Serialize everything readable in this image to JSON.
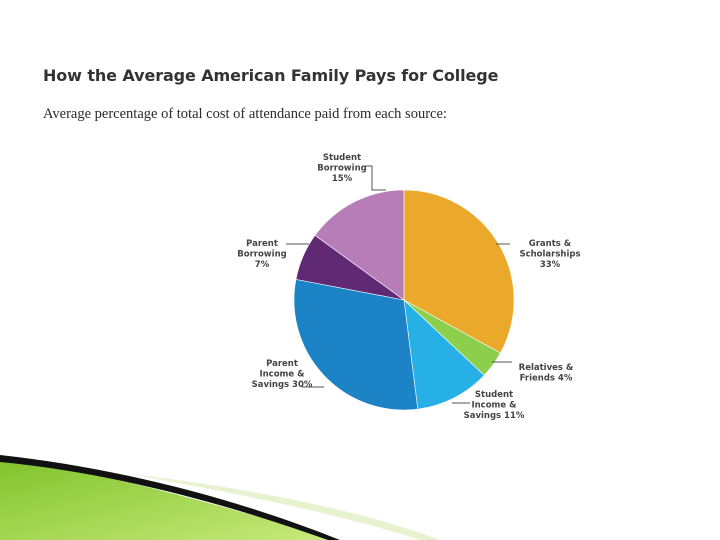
{
  "slide": {
    "title": "How the Average American Family Pays for College",
    "subtitle": "Average percentage of total cost of attendance paid from each source:"
  },
  "chart_data": {
    "type": "pie",
    "title": "How the Average American Family Pays for College",
    "subtitle": "Average percentage of total cost of attendance paid from each source:",
    "unit": "%",
    "start": "12 o'clock",
    "direction": "clockwise",
    "slices": [
      {
        "label_lines": [
          "Grants &",
          "Scholarships",
          "33%"
        ],
        "value": 33,
        "color": "#eaa92b"
      },
      {
        "label_lines": [
          "Relatives &",
          "Friends 4%"
        ],
        "value": 4,
        "color": "#8ccf4c"
      },
      {
        "label_lines": [
          "Student",
          "Income &",
          "Savings 11%"
        ],
        "value": 11,
        "color": "#27b0e6"
      },
      {
        "label_lines": [
          "Parent",
          "Income &",
          "Savings 30%"
        ],
        "value": 30,
        "color": "#1c84c6"
      },
      {
        "label_lines": [
          "Parent",
          "Borrowing",
          "7%"
        ],
        "value": 7,
        "color": "#5f2a73"
      },
      {
        "label_lines": [
          "Student",
          "Borrowing",
          "15%"
        ],
        "value": 15,
        "color": "#b77db9"
      }
    ]
  }
}
